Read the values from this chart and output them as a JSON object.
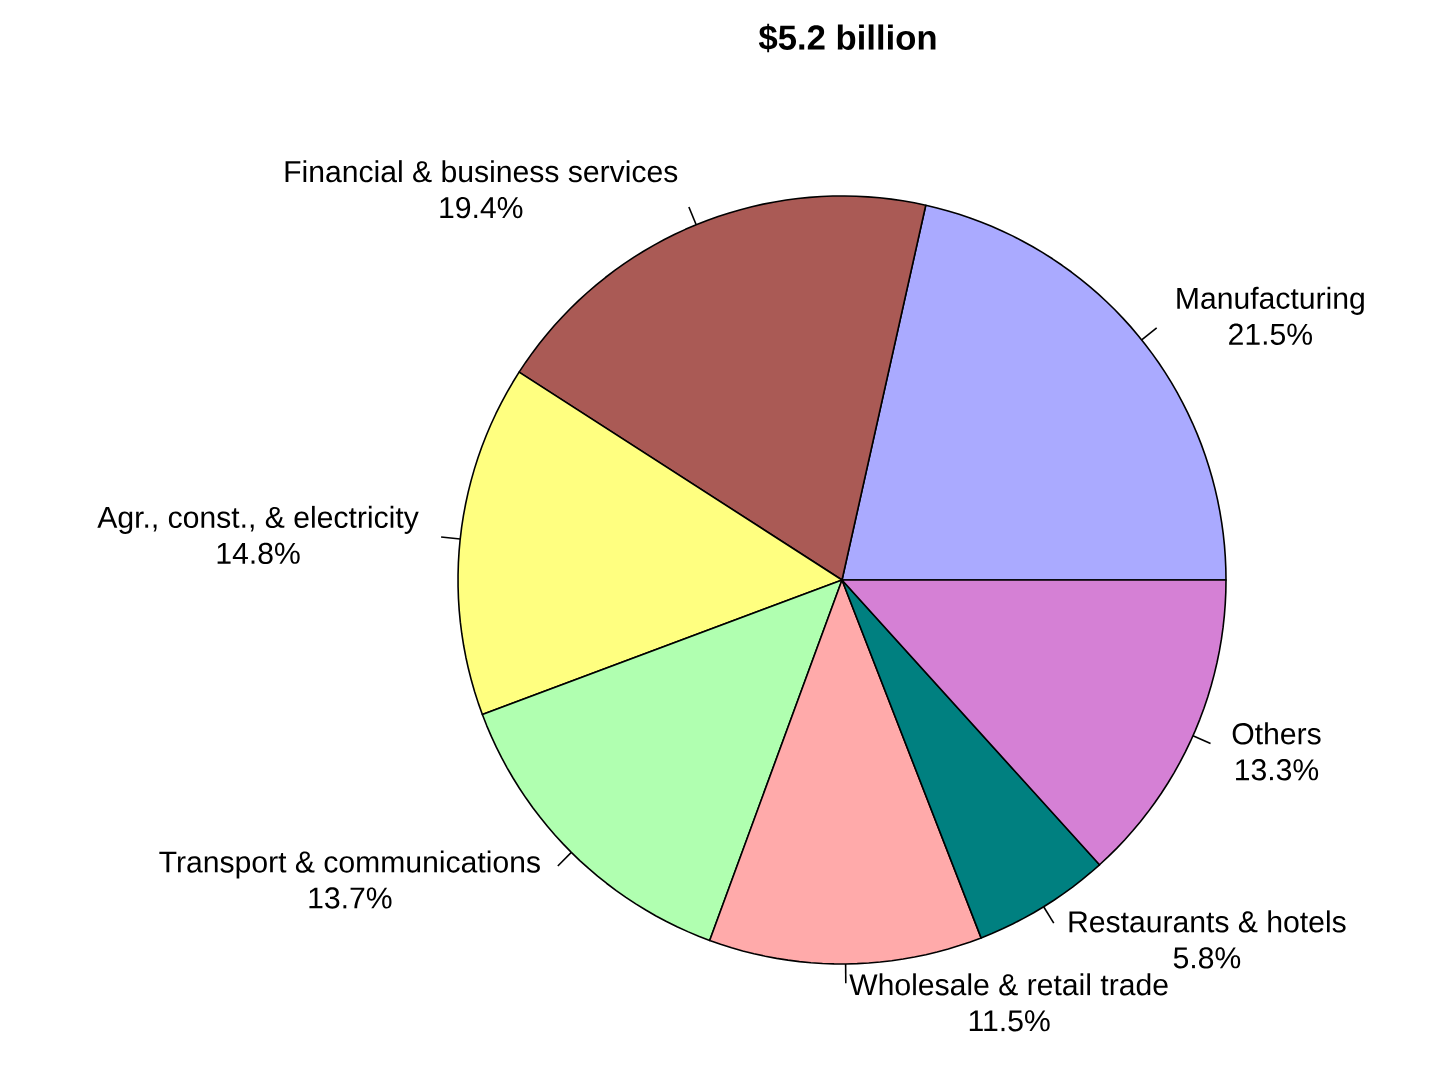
{
  "chart_data": {
    "type": "pie",
    "title": "$5.2 billion",
    "categories": [
      "Manufacturing",
      "Financial & business services",
      "Agr., const., & electricity",
      "Transport & communications",
      "Wholesale & retail trade",
      "Restaurants & hotels",
      "Others"
    ],
    "values": [
      21.5,
      19.4,
      14.8,
      13.7,
      11.5,
      5.8,
      13.3
    ],
    "value_labels": [
      "21.5%",
      "19.4%",
      "14.8%",
      "13.7%",
      "11.5%",
      "5.8%",
      "13.3%"
    ],
    "colors": [
      "#aaaaff",
      "#aa5a55",
      "#ffff80",
      "#b0ffb0",
      "#ffaaaa",
      "#008080",
      "#d580d5"
    ]
  }
}
